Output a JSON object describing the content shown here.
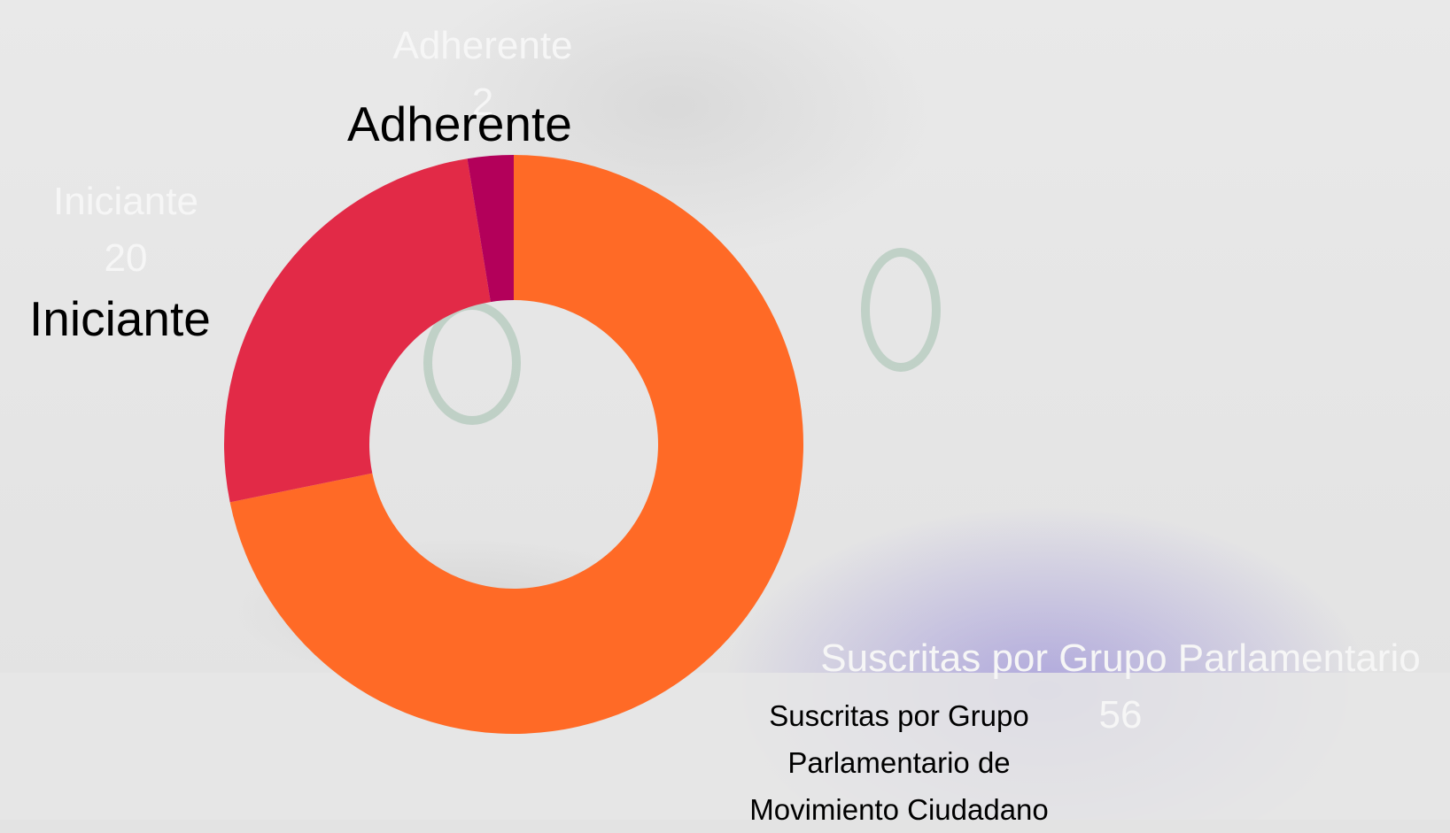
{
  "chart_data": {
    "type": "pie",
    "donut": true,
    "categories": [
      "Suscritas por Grupo Parlamentario",
      "Iniciante",
      "Adherente"
    ],
    "values": [
      56,
      20,
      2
    ],
    "colors": [
      "#FF6A26",
      "#E22A47",
      "#B3005A"
    ],
    "slice_labels": {
      "adherente": "Adherente",
      "iniciante": "Iniciante",
      "suscritas": "Suscritas por Grupo Parlamentario de Movimiento Ciudadano"
    },
    "ghost_labels": [
      {
        "name": "Adherente",
        "value": "2"
      },
      {
        "name": "Iniciante",
        "value": "20"
      },
      {
        "name": "Suscritas por Grupo Parlamentario",
        "value": "56"
      }
    ]
  }
}
